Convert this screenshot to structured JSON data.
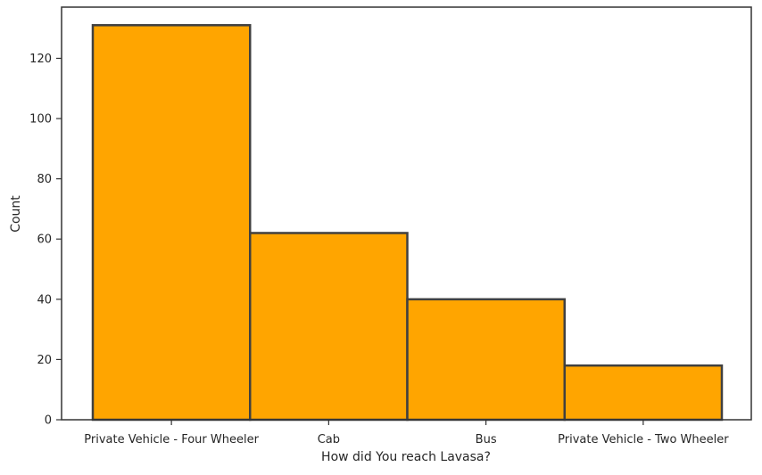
{
  "chart_data": {
    "type": "bar",
    "title": "",
    "xlabel": "How did You reach Lavasa?",
    "ylabel": "Count",
    "categories": [
      "Private Vehicle - Four Wheeler",
      "Cab",
      "Bus",
      "Private Vehicle - Two Wheeler"
    ],
    "values": [
      131,
      62,
      40,
      18
    ],
    "ylim": [
      0,
      137
    ],
    "yticks": [
      0,
      20,
      40,
      60,
      80,
      100,
      120
    ],
    "grid": false,
    "legend": "none",
    "bar_color": "#FFA500",
    "bar_edge_color": "#404040"
  }
}
